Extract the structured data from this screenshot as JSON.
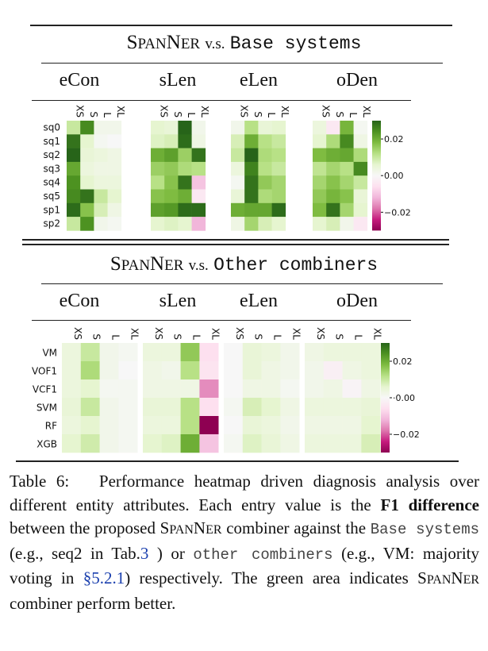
{
  "section1": {
    "title_sc_first": "S",
    "title_sc_rest1": "PAN",
    "title_sc_N": "N",
    "title_sc_rest2": "ER",
    "title_vs": "v.s.",
    "title_mono": "Base systems"
  },
  "section2": {
    "title_sc_first": "S",
    "title_sc_rest1": "PAN",
    "title_sc_N": "N",
    "title_sc_rest2": "ER",
    "title_vs": "v.s.",
    "title_mono": "Other combiners"
  },
  "colors": {
    "green_max": "#276419",
    "white_mid": "#f7f7f7",
    "pink_min": "#8e0152"
  },
  "chart_data": [
    {
      "type": "heatmap",
      "title": "SpanNER v.s. Base systems",
      "panels": [
        "eCon",
        "sLen",
        "eLen",
        "oDen"
      ],
      "columns": [
        "XS",
        "S",
        "L",
        "XL"
      ],
      "rows": [
        "sq0",
        "sq1",
        "sq2",
        "sq3",
        "sq4",
        "sq5",
        "sp1",
        "sp2"
      ],
      "colorbar": {
        "vmin": -0.03,
        "vmax": 0.03,
        "ticks": [
          0.02,
          0.0,
          -0.02
        ],
        "tick_labels": [
          "0.02",
          "0.00",
          "−0.02"
        ]
      },
      "values": {
        "eCon": [
          [
            0.01,
            0.025,
            0.002,
            0.002
          ],
          [
            0.028,
            0.006,
            0.001,
            0.0
          ],
          [
            0.03,
            0.005,
            0.004,
            0.003
          ],
          [
            0.021,
            0.004,
            0.003,
            0.003
          ],
          [
            0.024,
            0.006,
            0.004,
            0.004
          ],
          [
            0.025,
            0.028,
            0.01,
            0.006
          ],
          [
            0.029,
            0.017,
            0.008,
            0.003
          ],
          [
            0.01,
            0.024,
            0.002,
            0.001
          ]
        ],
        "sLen": [
          [
            0.006,
            0.005,
            0.03,
            0.002
          ],
          [
            0.007,
            0.008,
            0.029,
            0.003
          ],
          [
            0.02,
            0.022,
            0.015,
            0.028
          ],
          [
            0.015,
            0.016,
            0.013,
            0.012
          ],
          [
            0.012,
            0.017,
            0.028,
            -0.01
          ],
          [
            0.017,
            0.018,
            0.02,
            -0.004
          ],
          [
            0.022,
            0.023,
            0.029,
            0.029
          ],
          [
            0.006,
            0.007,
            0.006,
            -0.012
          ]
        ],
        "eLen": [
          [
            0.002,
            0.012,
            0.005,
            0.006
          ],
          [
            0.008,
            0.02,
            0.012,
            0.01
          ],
          [
            0.01,
            0.03,
            0.013,
            0.012
          ],
          [
            0.004,
            0.026,
            0.012,
            0.01
          ],
          [
            0.001,
            0.028,
            0.016,
            0.014
          ],
          [
            0.005,
            0.028,
            0.013,
            0.014
          ],
          [
            0.02,
            0.021,
            0.021,
            0.029
          ],
          [
            0.003,
            0.014,
            0.008,
            0.006
          ]
        ],
        "oDen": [
          [
            0.004,
            -0.004,
            0.019,
            0.001
          ],
          [
            0.006,
            0.013,
            0.025,
            0.003
          ],
          [
            0.018,
            0.02,
            0.021,
            0.013
          ],
          [
            0.011,
            0.014,
            0.012,
            0.025
          ],
          [
            0.014,
            0.017,
            0.014,
            0.01
          ],
          [
            0.016,
            0.019,
            0.017,
            0.005
          ],
          [
            0.018,
            0.028,
            0.014,
            0.006
          ],
          [
            0.006,
            0.008,
            0.002,
            -0.004
          ]
        ]
      }
    },
    {
      "type": "heatmap",
      "title": "SpanNER v.s. Other combiners",
      "panels": [
        "eCon",
        "sLen",
        "eLen",
        "oDen"
      ],
      "columns": [
        "XS",
        "S",
        "L",
        "XL"
      ],
      "rows": [
        "VM",
        "VOF1",
        "VCF1",
        "SVM",
        "RF",
        "XGB"
      ],
      "colorbar": {
        "vmin": -0.03,
        "vmax": 0.03,
        "ticks": [
          0.02,
          0.0,
          -0.02
        ],
        "tick_labels": [
          "0.02",
          "·0.00",
          "−0.02"
        ]
      },
      "values": {
        "eCon": [
          [
            0.004,
            0.01,
            0.002,
            0.001
          ],
          [
            0.004,
            0.013,
            0.002,
            0.0
          ],
          [
            0.004,
            0.006,
            0.001,
            0.001
          ],
          [
            0.005,
            0.01,
            0.002,
            0.001
          ],
          [
            0.004,
            0.006,
            0.002,
            0.001
          ],
          [
            0.006,
            0.009,
            0.002,
            0.001
          ]
        ],
        "sLen": [
          [
            0.004,
            0.004,
            0.016,
            -0.006
          ],
          [
            0.003,
            0.002,
            0.012,
            -0.005
          ],
          [
            0.003,
            0.003,
            0.003,
            -0.016
          ],
          [
            0.005,
            0.005,
            0.012,
            -0.006
          ],
          [
            0.004,
            0.004,
            0.012,
            -0.031
          ],
          [
            0.006,
            0.007,
            0.02,
            -0.01
          ]
        ],
        "eLen": [
          [
            0.0,
            0.005,
            0.004,
            0.002
          ],
          [
            0.0,
            0.005,
            0.003,
            0.002
          ],
          [
            0.0,
            0.003,
            0.003,
            0.001
          ],
          [
            0.001,
            0.008,
            0.006,
            0.003
          ],
          [
            0.0,
            0.005,
            0.004,
            0.002
          ],
          [
            0.001,
            0.007,
            0.005,
            0.003
          ]
        ],
        "oDen": [
          [
            0.003,
            0.004,
            0.004,
            0.004
          ],
          [
            0.002,
            -0.002,
            0.003,
            0.004
          ],
          [
            0.002,
            0.003,
            -0.001,
            0.003
          ],
          [
            0.004,
            0.004,
            0.004,
            0.005
          ],
          [
            0.003,
            0.003,
            0.003,
            0.006
          ],
          [
            0.004,
            0.004,
            0.004,
            0.008
          ]
        ]
      }
    }
  ],
  "caption": {
    "label": "Table 6:",
    "t1": "Performance heatmap driven diagnosis analysis over different entity attributes. Each entry value is the",
    "bold": "F1 difference",
    "t2": "between the proposed",
    "sc_S": "S",
    "sc_pan": "PAN",
    "sc_N": "N",
    "sc_er": "ER",
    "t3": "combiner against the",
    "mono1": "Base systems",
    "t4": "(e.g., seq2 in Tab.",
    "ref1": "3",
    "t5": ") or",
    "mono2": "other combiners",
    "t6": "(e.g., VM: majority voting in",
    "ref2": "§5.2.1",
    "t7": ") respectively. The green area indicates",
    "sc2_S": "S",
    "sc2_pan": "PAN",
    "sc2_N": "N",
    "sc2_er": "ER",
    "t8": "combiner perform better."
  }
}
